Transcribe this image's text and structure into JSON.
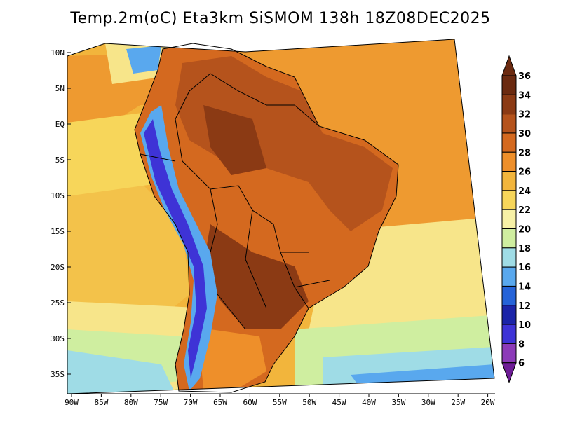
{
  "title": "Temp.2m(oC) Eta3km SiSMOM 138h 18Z08DEC2025",
  "map": {
    "lon_labels": [
      "90W",
      "85W",
      "80W",
      "75W",
      "70W",
      "65W",
      "60W",
      "55W",
      "50W",
      "45W",
      "40W",
      "35W",
      "30W",
      "25W",
      "20W"
    ],
    "lat_labels": [
      "10N",
      "5N",
      "EQ",
      "5S",
      "10S",
      "15S",
      "20S",
      "25S",
      "30S",
      "35S"
    ],
    "lat_values": [
      10,
      5,
      0,
      -5,
      -10,
      -15,
      -20,
      -25,
      -30,
      -35
    ]
  },
  "colorbar": {
    "labels": [
      "36",
      "34",
      "32",
      "30",
      "28",
      "26",
      "24",
      "22",
      "20",
      "18",
      "16",
      "14",
      "12",
      "10",
      "8",
      "6"
    ],
    "colors": [
      "#6b2a10",
      "#8b3a14",
      "#b5531c",
      "#d4691f",
      "#ee8f2a",
      "#f2b53c",
      "#f7d65a",
      "#f7f1a6",
      "#cfeea0",
      "#9fdce6",
      "#59a8ee",
      "#2563d8",
      "#1b24a8",
      "#3e33d6",
      "#8c3ab8",
      "#6e1c96"
    ]
  }
}
